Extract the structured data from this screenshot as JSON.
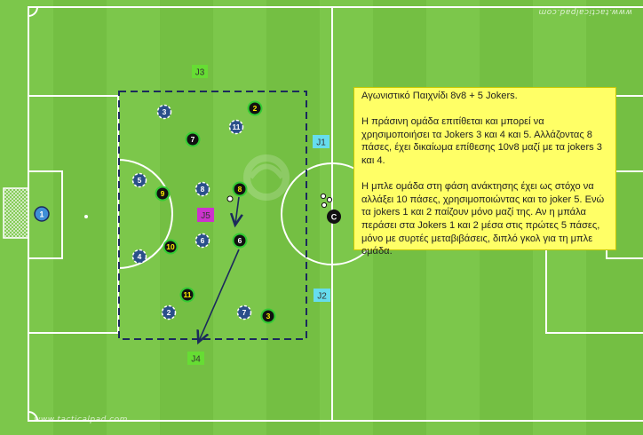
{
  "watermark_top": "www.tacticalpad.com",
  "watermark_bottom": "www.tacticalpad.com",
  "instructions": {
    "title": "Αγωνιστικό Παιχνίδι 8v8 + 5 Jokers.",
    "paragraph1": "Η πράσινη ομάδα επιτίθεται και μπορεί να χρησιμοποιήσει τα Jokers 3 και 4 και 5. Αλλάζοντας 8 πάσες, έχει δικαίωμα επίθεσης 10v8 μαζί με τα jokers 3 και 4.",
    "paragraph2": "Η μπλε ομάδα στη φάση ανάκτησης έχει ως στόχο να αλλάξει 10 πάσες, χρησιμοποιώντας και το joker 5. Ενώ τα jokers 1 και 2 παίζουν μόνο μαζί της. Αν η μπάλα περάσει στα Jokers 1 και 2 μέσα στις πρώτες 5 πάσες, μόνο με συρτές μεταβιβάσεις, διπλό γκολ για τη μπλε ομάδα."
  },
  "colors": {
    "pitch_light": "#7cc448",
    "pitch_dark": "#6db83d",
    "green_team_ring": "#33cc33",
    "blue_team": "#2a4f8a",
    "goalkeeper": "#3f8fd6",
    "joker_green": "#66dd33",
    "joker_cyan": "#66ddee",
    "joker_magenta": "#cc33cc",
    "note_bg": "#ffff66"
  },
  "jokers": [
    {
      "label": "J3",
      "color": "joker_green"
    },
    {
      "label": "J1",
      "color": "joker_cyan"
    },
    {
      "label": "J5",
      "color": "joker_magenta"
    },
    {
      "label": "J2",
      "color": "joker_cyan"
    },
    {
      "label": "J4",
      "color": "joker_green"
    }
  ],
  "green_team": [
    "2",
    "7",
    "9",
    "8",
    "10",
    "6",
    "11",
    "3"
  ],
  "blue_team": [
    "3",
    "11",
    "5",
    "8",
    "6",
    "4",
    "2",
    "7"
  ],
  "goalkeeper": "1",
  "coach": "C",
  "balls_count": 4
}
